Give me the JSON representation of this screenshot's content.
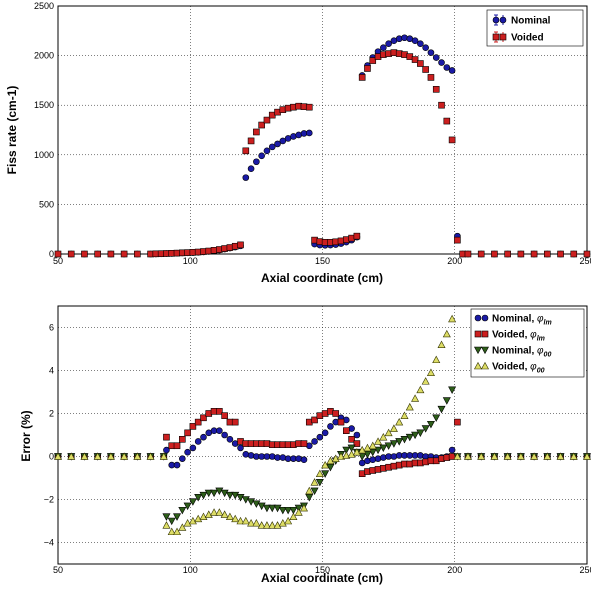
{
  "chart_data": [
    {
      "type": "scatter",
      "xlabel": "Axial coordinate (cm)",
      "ylabel": "Fiss rate (cm-1)",
      "xlim": [
        50,
        250
      ],
      "ylim": [
        0,
        2500
      ],
      "xticks": [
        "50",
        "100",
        "150",
        "200",
        "250"
      ],
      "yticks": [
        "0",
        "500",
        "1000",
        "1500",
        "2000",
        "2500"
      ],
      "grid": true,
      "legend_placement": "top-right",
      "series": [
        {
          "name": "Nominal",
          "color": "#1a1aa6",
          "marker": "circle",
          "x": [
            50,
            55,
            60,
            65,
            70,
            75,
            80,
            85,
            87,
            89,
            91,
            93,
            95,
            97,
            99,
            101,
            103,
            105,
            107,
            109,
            111,
            113,
            115,
            117,
            119,
            121,
            123,
            125,
            127,
            129,
            131,
            133,
            135,
            137,
            139,
            141,
            143,
            145,
            147,
            149,
            151,
            153,
            155,
            157,
            159,
            161,
            163,
            165,
            167,
            169,
            171,
            173,
            175,
            177,
            179,
            181,
            183,
            185,
            187,
            189,
            191,
            193,
            195,
            197,
            199,
            201,
            203,
            205,
            210,
            215,
            220,
            225,
            230,
            235,
            240,
            245,
            250
          ],
          "y": [
            0,
            0,
            0,
            0,
            0,
            0,
            0,
            0,
            1,
            2,
            4,
            6,
            8,
            10,
            12,
            14,
            17,
            21,
            26,
            32,
            40,
            50,
            60,
            70,
            82,
            770,
            860,
            930,
            990,
            1040,
            1080,
            1110,
            1140,
            1165,
            1185,
            1200,
            1215,
            1220,
            100,
            90,
            88,
            90,
            95,
            105,
            120,
            140,
            170,
            1800,
            1900,
            1980,
            2040,
            2080,
            2120,
            2150,
            2170,
            2180,
            2170,
            2150,
            2120,
            2080,
            2030,
            1980,
            1930,
            1880,
            1850,
            180,
            0,
            0,
            0,
            0,
            0,
            0,
            0,
            0,
            0,
            0,
            0
          ]
        },
        {
          "name": "Voided",
          "color": "#cc1f1f",
          "marker": "square",
          "x": [
            50,
            55,
            60,
            65,
            70,
            75,
            80,
            85,
            87,
            89,
            91,
            93,
            95,
            97,
            99,
            101,
            103,
            105,
            107,
            109,
            111,
            113,
            115,
            117,
            119,
            121,
            123,
            125,
            127,
            129,
            131,
            133,
            135,
            137,
            139,
            141,
            143,
            145,
            147,
            149,
            151,
            153,
            155,
            157,
            159,
            161,
            163,
            165,
            167,
            169,
            171,
            173,
            175,
            177,
            179,
            181,
            183,
            185,
            187,
            189,
            191,
            193,
            195,
            197,
            199,
            201,
            203,
            205,
            210,
            215,
            220,
            225,
            230,
            235,
            240,
            245,
            250
          ],
          "y": [
            0,
            0,
            0,
            0,
            0,
            0,
            0,
            0,
            2,
            3,
            5,
            7,
            9,
            12,
            14,
            17,
            20,
            25,
            30,
            37,
            45,
            55,
            65,
            78,
            92,
            1040,
            1140,
            1230,
            1300,
            1350,
            1400,
            1430,
            1455,
            1470,
            1480,
            1490,
            1485,
            1480,
            140,
            125,
            118,
            118,
            123,
            132,
            145,
            160,
            180,
            1780,
            1870,
            1950,
            1990,
            2010,
            2020,
            2030,
            2020,
            2010,
            1990,
            1960,
            1920,
            1860,
            1780,
            1660,
            1500,
            1340,
            1150,
            140,
            0,
            0,
            0,
            0,
            0,
            0,
            0,
            0,
            0,
            0,
            0
          ]
        }
      ]
    },
    {
      "type": "scatter",
      "xlabel": "Axial coordinate (cm)",
      "ylabel": "Error (%)",
      "xlim": [
        50,
        250
      ],
      "ylim": [
        -5,
        7
      ],
      "xticks": [
        "50",
        "100",
        "150",
        "200",
        "250"
      ],
      "yticks": [
        "−4",
        "−2",
        "0",
        "2",
        "4",
        "6"
      ],
      "grid": true,
      "legend_placement": "top-right",
      "series": [
        {
          "name": "Nominal, ",
          "sym": "φ",
          "sub": "lm",
          "color": "#1a1aa6",
          "marker": "circle",
          "x": [
            50,
            55,
            60,
            65,
            70,
            75,
            80,
            85,
            90,
            91,
            93,
            95,
            97,
            99,
            101,
            103,
            105,
            107,
            109,
            111,
            113,
            115,
            117,
            119,
            121,
            123,
            125,
            127,
            129,
            131,
            133,
            135,
            137,
            139,
            141,
            143,
            145,
            147,
            149,
            151,
            153,
            155,
            157,
            159,
            161,
            163,
            165,
            167,
            169,
            171,
            173,
            175,
            177,
            179,
            181,
            183,
            185,
            187,
            189,
            191,
            193,
            195,
            197,
            199,
            201,
            205,
            210,
            215,
            220,
            225,
            230,
            235,
            240,
            245,
            250
          ],
          "y": [
            0,
            0,
            0,
            0,
            0,
            0,
            0,
            0,
            0,
            0.3,
            -0.4,
            -0.4,
            -0.1,
            0.2,
            0.4,
            0.7,
            0.9,
            1.1,
            1.2,
            1.2,
            1.0,
            0.8,
            0.6,
            0.4,
            0.1,
            0.05,
            0.0,
            0.0,
            0.0,
            0.0,
            -0.05,
            -0.05,
            -0.1,
            -0.1,
            -0.1,
            -0.15,
            0.5,
            0.7,
            0.9,
            1.1,
            1.4,
            1.6,
            1.8,
            1.7,
            1.3,
            1.0,
            -0.3,
            -0.2,
            -0.15,
            -0.1,
            -0.05,
            0.0,
            0.0,
            0.05,
            0.05,
            0.05,
            0.05,
            0.05,
            0.0,
            0.0,
            -0.05,
            -0.05,
            0.0,
            0.3,
            0,
            0,
            0,
            0,
            0,
            0,
            0,
            0,
            0,
            0,
            0
          ]
        },
        {
          "name": "Voided, ",
          "sym": "φ",
          "sub": "lm",
          "color": "#cc1f1f",
          "marker": "square",
          "x": [
            50,
            55,
            60,
            65,
            70,
            75,
            80,
            85,
            90,
            91,
            93,
            95,
            97,
            99,
            101,
            103,
            105,
            107,
            109,
            111,
            113,
            115,
            117,
            119,
            121,
            123,
            125,
            127,
            129,
            131,
            133,
            135,
            137,
            139,
            141,
            143,
            145,
            147,
            149,
            151,
            153,
            155,
            157,
            159,
            161,
            163,
            165,
            167,
            169,
            171,
            173,
            175,
            177,
            179,
            181,
            183,
            185,
            187,
            189,
            191,
            193,
            195,
            197,
            199,
            201,
            205,
            210,
            215,
            220,
            225,
            230,
            235,
            240,
            245,
            250
          ],
          "y": [
            0,
            0,
            0,
            0,
            0,
            0,
            0,
            0,
            0,
            0.9,
            0.5,
            0.5,
            0.8,
            1.1,
            1.4,
            1.6,
            1.8,
            2.0,
            2.1,
            2.1,
            1.9,
            1.6,
            1.6,
            0.7,
            0.6,
            0.6,
            0.6,
            0.6,
            0.6,
            0.55,
            0.55,
            0.55,
            0.55,
            0.55,
            0.6,
            0.6,
            1.6,
            1.7,
            1.9,
            2.0,
            2.1,
            2.0,
            1.6,
            1.2,
            0.8,
            0.6,
            -0.8,
            -0.7,
            -0.65,
            -0.6,
            -0.55,
            -0.5,
            -0.45,
            -0.4,
            -0.35,
            -0.35,
            -0.3,
            -0.3,
            -0.25,
            -0.2,
            -0.2,
            -0.1,
            -0.05,
            0.0,
            1.6,
            0,
            0,
            0,
            0,
            0,
            0,
            0,
            0,
            0,
            0
          ]
        },
        {
          "name": "Nominal, ",
          "sym": "φ",
          "sub": "00",
          "color": "#2e5e1a",
          "marker": "triangle-down",
          "x": [
            50,
            55,
            60,
            65,
            70,
            75,
            80,
            85,
            90,
            91,
            93,
            95,
            97,
            99,
            101,
            103,
            105,
            107,
            109,
            111,
            113,
            115,
            117,
            119,
            121,
            123,
            125,
            127,
            129,
            131,
            133,
            135,
            137,
            139,
            141,
            143,
            145,
            147,
            149,
            151,
            153,
            155,
            157,
            159,
            161,
            163,
            165,
            167,
            169,
            171,
            173,
            175,
            177,
            179,
            181,
            183,
            185,
            187,
            189,
            191,
            193,
            195,
            197,
            199,
            201,
            205,
            210,
            215,
            220,
            225,
            230,
            235,
            240,
            245,
            250
          ],
          "y": [
            0,
            0,
            0,
            0,
            0,
            0,
            0,
            0,
            0,
            -2.8,
            -3.0,
            -2.8,
            -2.5,
            -2.3,
            -2.1,
            -1.9,
            -1.8,
            -1.7,
            -1.7,
            -1.6,
            -1.7,
            -1.8,
            -1.8,
            -1.9,
            -2.0,
            -2.1,
            -2.2,
            -2.3,
            -2.4,
            -2.4,
            -2.4,
            -2.5,
            -2.5,
            -2.5,
            -2.4,
            -2.3,
            -1.9,
            -1.6,
            -1.2,
            -0.8,
            -0.5,
            -0.2,
            0.1,
            0.3,
            0.4,
            0.2,
            0.0,
            0.1,
            0.2,
            0.3,
            0.4,
            0.5,
            0.6,
            0.7,
            0.8,
            0.9,
            1.0,
            1.1,
            1.3,
            1.5,
            1.8,
            2.2,
            2.6,
            3.1,
            0,
            0,
            0,
            0,
            0,
            0,
            0,
            0,
            0,
            0,
            0
          ]
        },
        {
          "name": "Voided, ",
          "sym": "φ",
          "sub": "00",
          "color": "#dddd66",
          "stroke": "#333300",
          "marker": "triangle-up",
          "x": [
            50,
            55,
            60,
            65,
            70,
            75,
            80,
            85,
            90,
            91,
            93,
            95,
            97,
            99,
            101,
            103,
            105,
            107,
            109,
            111,
            113,
            115,
            117,
            119,
            121,
            123,
            125,
            127,
            129,
            131,
            133,
            135,
            137,
            139,
            141,
            143,
            145,
            147,
            149,
            151,
            153,
            155,
            157,
            159,
            161,
            163,
            165,
            167,
            169,
            171,
            173,
            175,
            177,
            179,
            181,
            183,
            185,
            187,
            189,
            191,
            193,
            195,
            197,
            199,
            201,
            205,
            210,
            215,
            220,
            225,
            230,
            235,
            240,
            245,
            250
          ],
          "y": [
            0,
            0,
            0,
            0,
            0,
            0,
            0,
            0,
            0,
            -3.2,
            -3.5,
            -3.5,
            -3.3,
            -3.1,
            -3.0,
            -2.9,
            -2.8,
            -2.7,
            -2.6,
            -2.6,
            -2.7,
            -2.8,
            -2.9,
            -3.0,
            -3.0,
            -3.1,
            -3.1,
            -3.2,
            -3.2,
            -3.2,
            -3.2,
            -3.1,
            -3.0,
            -2.8,
            -2.6,
            -2.4,
            -1.6,
            -1.2,
            -0.8,
            -0.4,
            -0.2,
            -0.1,
            0.0,
            0.05,
            0.1,
            0.2,
            0.3,
            0.4,
            0.5,
            0.7,
            0.9,
            1.1,
            1.3,
            1.6,
            1.9,
            2.3,
            2.7,
            3.1,
            3.5,
            3.9,
            4.5,
            5.2,
            5.7,
            6.4,
            0,
            0,
            0,
            0,
            0,
            0,
            0,
            0,
            0,
            0,
            0
          ]
        }
      ]
    }
  ]
}
